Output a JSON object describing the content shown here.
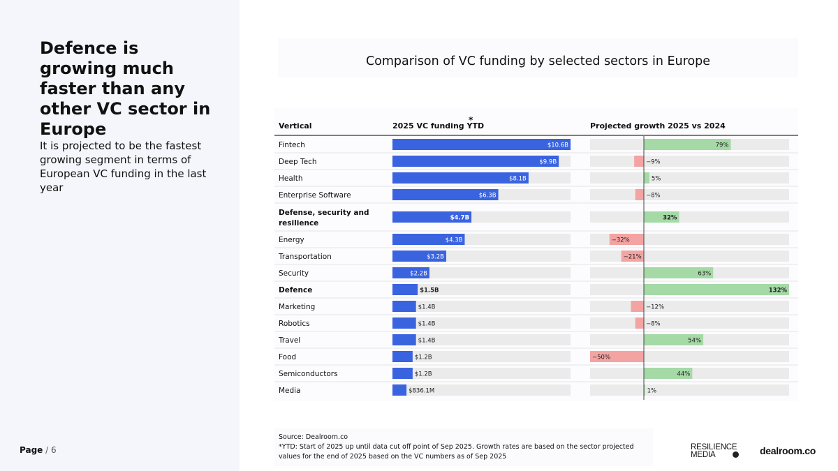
{
  "headline": "Defence is growing much faster than any other VC sector in Europe",
  "subtext": "It is projected to be the fastest growing segment in terms of European VC funding in the last year",
  "page": {
    "current": "Page",
    "total": "/ 6"
  },
  "source": {
    "line1": "Source:  Dealroom.co",
    "line2": "*YTD: Start of 2025 up until data cut off point of Sep 2025. Growth rates are based on the sector projected",
    "line3": "values for the end of 2025 based on the VC numbers as of Sep 2025"
  },
  "logos": {
    "resilience_line1": "RESILIENCE",
    "resilience_line2": "MEDIA",
    "dealroom": "dealroom.co"
  },
  "colors": {
    "funding_bar": "#3a63e0",
    "growth_positive": "#a5d9a6",
    "growth_negative": "#f4a3a3",
    "track": "#ebebeb"
  },
  "chart_data": {
    "type": "table",
    "title": "Comparison of VC funding by selected sectors in Europe",
    "columns": {
      "vertical": "Vertical",
      "funding": "2025 VC funding YTD",
      "funding_marker": "*",
      "growth": "Projected growth 2025 vs 2024"
    },
    "funding_max": 10.6,
    "growth_range": [
      -50,
      132
    ],
    "rows": [
      {
        "vertical": [
          "Fintech"
        ],
        "funding": 10.6,
        "funding_label": "$10.6B",
        "growth": 79,
        "growth_label": "79%",
        "bold": false
      },
      {
        "vertical": [
          "Deep Tech"
        ],
        "funding": 9.9,
        "funding_label": "$9.9B",
        "growth": -9,
        "growth_label": "−9%",
        "bold": false
      },
      {
        "vertical": [
          "Health"
        ],
        "funding": 8.1,
        "funding_label": "$8.1B",
        "growth": 5,
        "growth_label": "5%",
        "bold": false
      },
      {
        "vertical": [
          "Enterprise Software"
        ],
        "funding": 6.3,
        "funding_label": "$6.3B",
        "growth": -8,
        "growth_label": "−8%",
        "bold": false
      },
      {
        "vertical": [
          "Defense, security and",
          "resilience"
        ],
        "funding": 4.7,
        "funding_label": "$4.7B",
        "growth": 32,
        "growth_label": "32%",
        "bold": true
      },
      {
        "vertical": [
          "Energy"
        ],
        "funding": 4.3,
        "funding_label": "$4.3B",
        "growth": -32,
        "growth_label": "−32%",
        "bold": false
      },
      {
        "vertical": [
          "Transportation"
        ],
        "funding": 3.2,
        "funding_label": "$3.2B",
        "growth": -21,
        "growth_label": "−21%",
        "bold": false
      },
      {
        "vertical": [
          "Security"
        ],
        "funding": 2.2,
        "funding_label": "$2.2B",
        "growth": 63,
        "growth_label": "63%",
        "bold": false
      },
      {
        "vertical": [
          "Defence"
        ],
        "funding": 1.5,
        "funding_label": "$1.5B",
        "growth": 132,
        "growth_label": "132%",
        "bold": true
      },
      {
        "vertical": [
          "Marketing"
        ],
        "funding": 1.4,
        "funding_label": "$1.4B",
        "growth": -12,
        "growth_label": "−12%",
        "bold": false
      },
      {
        "vertical": [
          "Robotics"
        ],
        "funding": 1.4,
        "funding_label": "$1.4B",
        "growth": -8,
        "growth_label": "−8%",
        "bold": false
      },
      {
        "vertical": [
          "Travel"
        ],
        "funding": 1.4,
        "funding_label": "$1.4B",
        "growth": 54,
        "growth_label": "54%",
        "bold": false
      },
      {
        "vertical": [
          "Food"
        ],
        "funding": 1.2,
        "funding_label": "$1.2B",
        "growth": -50,
        "growth_label": "−50%",
        "bold": false
      },
      {
        "vertical": [
          "Semiconductors"
        ],
        "funding": 1.2,
        "funding_label": "$1.2B",
        "growth": 44,
        "growth_label": "44%",
        "bold": false
      },
      {
        "vertical": [
          "Media"
        ],
        "funding": 0.8361,
        "funding_label": "$836.1M",
        "growth": 1,
        "growth_label": "1%",
        "bold": false
      }
    ]
  }
}
